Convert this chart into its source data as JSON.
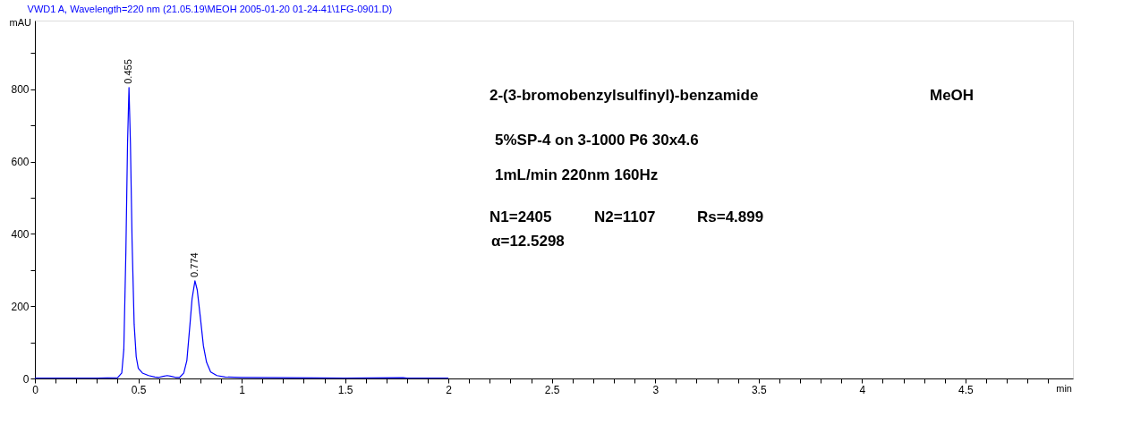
{
  "chart_data": {
    "type": "line",
    "title": "VWD1 A, Wavelength=220 nm (21.05.19\\MEOH 2005-01-20 01-24-41\\1FG-0901.D)",
    "xlabel": "min",
    "ylabel": "mAU",
    "x": [
      0,
      0.3,
      0.4,
      0.42,
      0.43,
      0.44,
      0.448,
      0.455,
      0.462,
      0.47,
      0.48,
      0.49,
      0.5,
      0.52,
      0.55,
      0.58,
      0.6,
      0.62,
      0.64,
      0.66,
      0.68,
      0.7,
      0.72,
      0.735,
      0.75,
      0.76,
      0.774,
      0.785,
      0.8,
      0.815,
      0.83,
      0.85,
      0.88,
      0.92,
      1.0,
      1.2,
      1.5,
      1.78,
      1.8,
      2.0
    ],
    "series": [
      {
        "color": "#0000ff",
        "values": [
          1,
          1,
          2,
          15,
          80,
          350,
          650,
          805,
          650,
          380,
          150,
          60,
          28,
          15,
          8,
          4,
          3,
          6,
          8,
          6,
          3,
          3,
          15,
          50,
          150,
          220,
          270,
          245,
          170,
          90,
          45,
          18,
          8,
          4,
          3,
          2,
          1,
          2,
          1,
          1
        ]
      }
    ],
    "xlim": [
      0,
      5.02
    ],
    "ylim": [
      0,
      990
    ],
    "xticks": [
      0,
      {
        "value": 0.1,
        "label": null
      },
      {
        "value": 0.2,
        "label": null
      },
      {
        "value": 0.3,
        "label": null
      },
      {
        "value": 0.4,
        "label": null
      },
      0.5,
      {
        "value": 0.6,
        "label": null
      },
      {
        "value": 0.7,
        "label": null
      },
      {
        "value": 0.8,
        "label": null
      },
      {
        "value": 0.9,
        "label": null
      },
      1,
      {
        "value": 1.1,
        "label": null
      },
      {
        "value": 1.2,
        "label": null
      },
      {
        "value": 1.3,
        "label": null
      },
      {
        "value": 1.4,
        "label": null
      },
      1.5,
      {
        "value": 1.6,
        "label": null
      },
      {
        "value": 1.7,
        "label": null
      },
      {
        "value": 1.8,
        "label": null
      },
      {
        "value": 1.9,
        "label": null
      },
      2,
      {
        "value": 2.1,
        "label": null
      },
      {
        "value": 2.2,
        "label": null
      },
      {
        "value": 2.3,
        "label": null
      },
      {
        "value": 2.4,
        "label": null
      },
      2.5,
      {
        "value": 2.6,
        "label": null
      },
      {
        "value": 2.7,
        "label": null
      },
      {
        "value": 2.8,
        "label": null
      },
      {
        "value": 2.9,
        "label": null
      },
      3,
      {
        "value": 3.1,
        "label": null
      },
      {
        "value": 3.2,
        "label": null
      },
      {
        "value": 3.3,
        "label": null
      },
      {
        "value": 3.4,
        "label": null
      },
      3.5,
      {
        "value": 3.6,
        "label": null
      },
      {
        "value": 3.7,
        "label": null
      },
      {
        "value": 3.8,
        "label": null
      },
      {
        "value": 3.9,
        "label": null
      },
      4,
      {
        "value": 4.1,
        "label": null
      },
      {
        "value": 4.2,
        "label": null
      },
      {
        "value": 4.3,
        "label": null
      },
      {
        "value": 4.4,
        "label": null
      },
      4.5,
      {
        "value": 4.6,
        "label": null
      },
      {
        "value": 4.7,
        "label": null
      },
      {
        "value": 4.8,
        "label": null
      },
      {
        "value": 4.9,
        "label": null
      }
    ],
    "yticks": [
      0,
      {
        "value": 100,
        "label": null
      },
      200,
      {
        "value": 300,
        "label": null
      },
      400,
      {
        "value": 500,
        "label": null
      },
      600,
      {
        "value": 700,
        "label": null
      },
      800,
      {
        "value": 900,
        "label": null
      }
    ],
    "grid": false,
    "marker": "none",
    "line_style": "solid",
    "annotations": [
      {
        "text": "0.455",
        "x": 0.455,
        "y": 805
      },
      {
        "text": "0.774",
        "x": 0.774,
        "y": 270
      },
      "2-(3-bromobenzylsulfinyl)-benzamide",
      "MeOH",
      "5%SP-4 on 3-1000 P6  30x4.6",
      "1mL/min  220nm  160Hz",
      "N1=2405",
      "N2=1107",
      "Rs=4.899",
      "α=12.5298"
    ]
  }
}
